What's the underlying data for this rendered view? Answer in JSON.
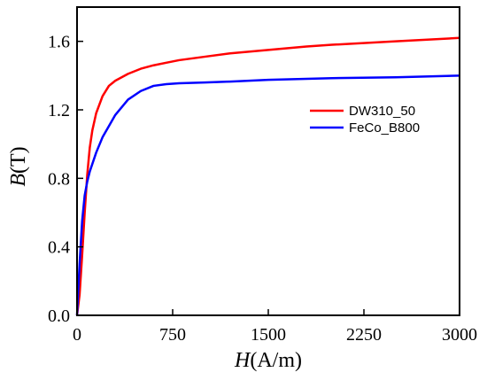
{
  "chart_data": {
    "type": "line",
    "title": "",
    "xlabel": {
      "symbol": "H",
      "unit": "(A/m)"
    },
    "ylabel": {
      "symbol": "B",
      "unit": "(T)"
    },
    "xlim": [
      0,
      3000
    ],
    "ylim": [
      0,
      1.8
    ],
    "xticks": [
      0,
      750,
      1500,
      2250,
      3000
    ],
    "xtick_labels": [
      "0",
      "750",
      "1500",
      "2250",
      "3000"
    ],
    "yticks": [
      0,
      0.4,
      0.8,
      1.2,
      1.6
    ],
    "ytick_labels": [
      "0.0",
      "0.4",
      "0.8",
      "1.2",
      "1.6"
    ],
    "grid": false,
    "legend_position": "center-right",
    "series": [
      {
        "name": "DW310_50",
        "color": "#ff0000",
        "x": [
          0,
          20,
          40,
          60,
          80,
          100,
          120,
          150,
          200,
          250,
          300,
          400,
          500,
          600,
          700,
          800,
          1000,
          1200,
          1500,
          1800,
          2000,
          2500,
          3000
        ],
        "y": [
          0,
          0.12,
          0.35,
          0.6,
          0.82,
          0.98,
          1.08,
          1.18,
          1.28,
          1.34,
          1.37,
          1.41,
          1.44,
          1.46,
          1.475,
          1.49,
          1.51,
          1.53,
          1.55,
          1.57,
          1.58,
          1.6,
          1.62
        ]
      },
      {
        "name": "FeCo_B800",
        "color": "#0000ff",
        "x": [
          0,
          20,
          40,
          60,
          80,
          100,
          150,
          200,
          300,
          400,
          500,
          600,
          700,
          800,
          1000,
          1200,
          1500,
          2000,
          2500,
          3000
        ],
        "y": [
          0,
          0.3,
          0.55,
          0.7,
          0.78,
          0.84,
          0.95,
          1.04,
          1.17,
          1.26,
          1.31,
          1.34,
          1.35,
          1.355,
          1.36,
          1.365,
          1.375,
          1.385,
          1.39,
          1.4
        ]
      }
    ]
  }
}
